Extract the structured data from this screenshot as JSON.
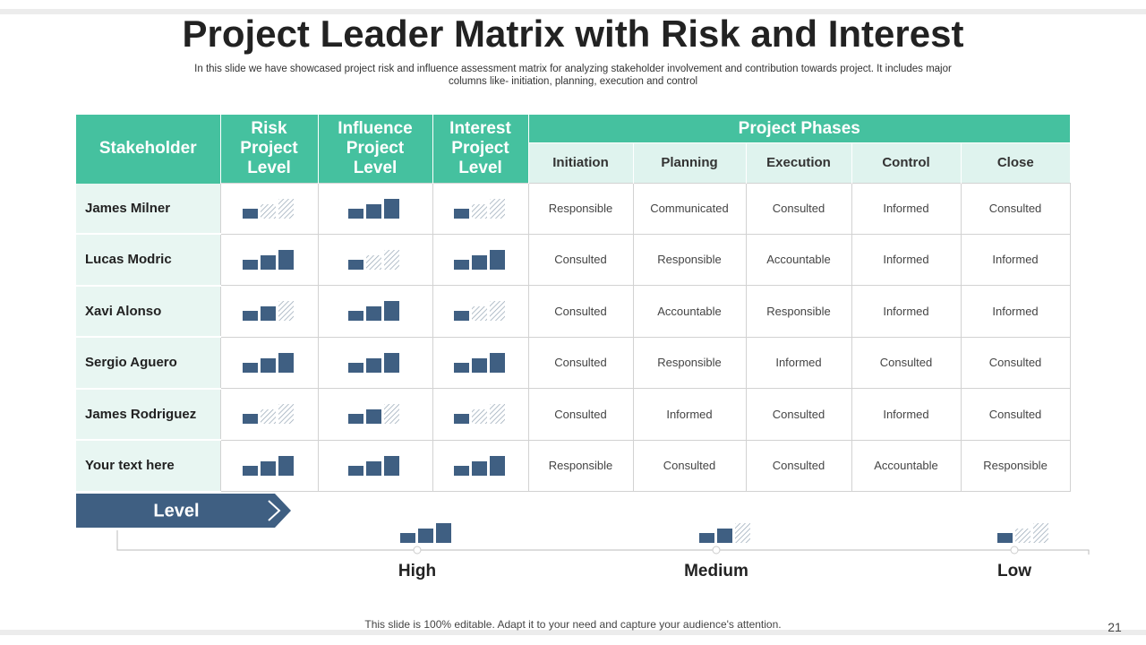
{
  "header": {
    "title": "Project Leader Matrix with Risk and Interest",
    "subtitle": "In this slide we have showcased project risk and influence assessment matrix for analyzing stakeholder involvement and contribution towards project. It includes major columns like- initiation, planning, execution and control"
  },
  "table": {
    "columns": [
      "Stakeholder",
      "Risk Project Level",
      "Influence Project Level",
      "Interest Project Level"
    ],
    "group": "Project Phases",
    "phases": [
      "Initiation",
      "Planning",
      "Execution",
      "Control",
      "Close"
    ],
    "rows": [
      {
        "stakeholder": "James Milner",
        "levels": [
          1,
          3,
          1
        ],
        "phases": [
          "Responsible",
          "Communicated",
          "Consulted",
          "Informed",
          "Consulted"
        ]
      },
      {
        "stakeholder": "Lucas Modric",
        "levels": [
          3,
          1,
          3
        ],
        "phases": [
          "Consulted",
          "Responsible",
          "Accountable",
          "Informed",
          "Informed"
        ]
      },
      {
        "stakeholder": "Xavi Alonso",
        "levels": [
          2,
          3,
          1
        ],
        "phases": [
          "Consulted",
          "Accountable",
          "Responsible",
          "Informed",
          "Informed"
        ]
      },
      {
        "stakeholder": "Sergio Aguero",
        "levels": [
          3,
          3,
          3
        ],
        "phases": [
          "Consulted",
          "Responsible",
          "Informed",
          "Consulted",
          "Consulted"
        ]
      },
      {
        "stakeholder": "James Rodriguez",
        "levels": [
          1,
          2,
          1
        ],
        "phases": [
          "Consulted",
          "Informed",
          "Consulted",
          "Informed",
          "Consulted"
        ]
      },
      {
        "stakeholder": "Your text here",
        "levels": [
          3,
          3,
          3
        ],
        "phases": [
          "Responsible",
          "Consulted",
          "Consulted",
          "Accountable",
          "Responsible"
        ]
      }
    ]
  },
  "legend": {
    "title": "Level",
    "levels": [
      {
        "label": "High",
        "value": 3
      },
      {
        "label": "Medium",
        "value": 2
      },
      {
        "label": "Low",
        "value": 1
      }
    ]
  },
  "footer": {
    "note": "This slide is 100% editable. Adapt it to your need and capture your audience's attention.",
    "page": 21
  }
}
